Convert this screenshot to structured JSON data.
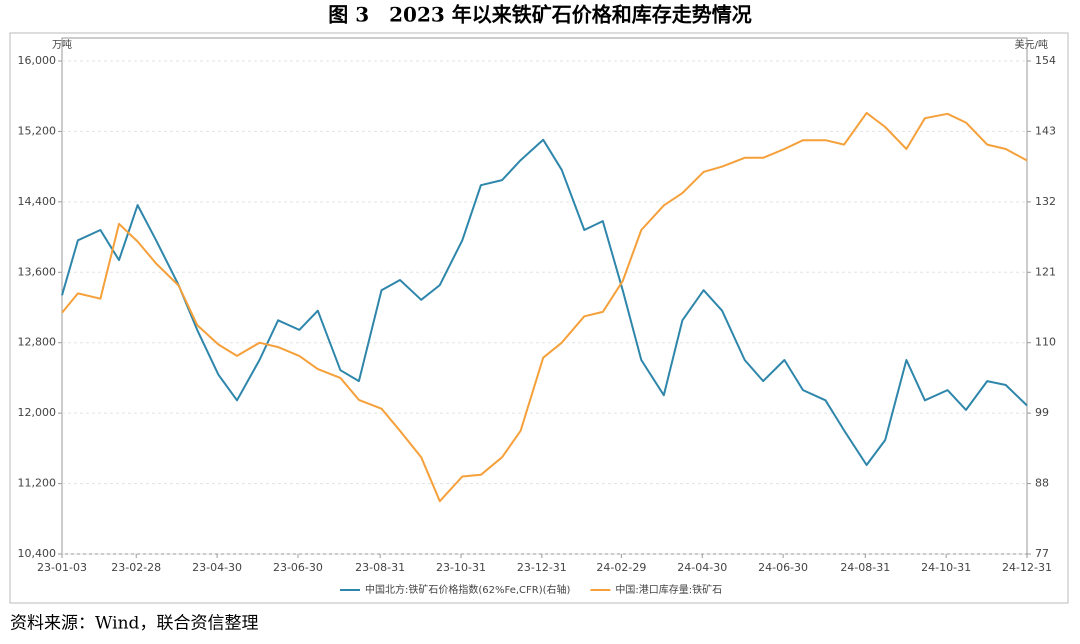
{
  "chart_data": {
    "type": "line",
    "title": "图 3　2023 年以来铁矿石价格和库存走势情况",
    "ylabel": "万吨",
    "y2label": "美元/吨",
    "source": "资料来源：Wind，联合资信整理",
    "x": [
      "23-01-03",
      "23-01-15",
      "23-02-01",
      "23-02-15",
      "23-03-01",
      "23-03-15",
      "23-04-01",
      "23-04-15",
      "23-05-01",
      "23-05-15",
      "23-06-01",
      "23-06-15",
      "23-07-01",
      "23-07-15",
      "23-08-01",
      "23-08-15",
      "23-09-01",
      "23-09-15",
      "23-10-01",
      "23-10-15",
      "23-11-01",
      "23-11-15",
      "23-12-01",
      "23-12-15",
      "24-01-01",
      "24-01-15",
      "24-02-01",
      "24-02-15",
      "24-03-01",
      "24-03-15",
      "24-04-01",
      "24-04-15",
      "24-05-01",
      "24-05-15",
      "24-06-01",
      "24-06-15",
      "24-07-01",
      "24-07-15",
      "24-08-01",
      "24-08-15",
      "24-09-01",
      "24-09-15",
      "24-10-01",
      "24-10-15",
      "24-11-01",
      "24-11-15",
      "24-12-01",
      "24-12-15",
      "24-12-31"
    ],
    "xlim": [
      "23-01-03",
      "24-12-31"
    ],
    "xticks": [
      "23-01-03",
      "23-02-28",
      "23-04-30",
      "23-06-30",
      "23-08-31",
      "23-10-31",
      "23-12-31",
      "24-02-29",
      "24-04-30",
      "24-06-30",
      "24-08-31",
      "24-10-31",
      "24-12-31"
    ],
    "ylim": [
      10400,
      16000
    ],
    "yticks": [
      {
        "value": 10400,
        "label": "10,400"
      },
      {
        "value": 11200,
        "label": "11,200"
      },
      {
        "value": 12000,
        "label": "12,000"
      },
      {
        "value": 12800,
        "label": "12,800"
      },
      {
        "value": 13600,
        "label": "13,600"
      },
      {
        "value": 14400,
        "label": "14,400"
      },
      {
        "value": 15200,
        "label": "15,200"
      },
      {
        "value": 16000,
        "label": "16,000"
      }
    ],
    "y2lim": [
      77,
      154
    ],
    "y2ticks": [
      77,
      88,
      99,
      110,
      121,
      132,
      143,
      154
    ],
    "grid": true,
    "series": [
      {
        "name": "中国北方:铁矿石价格指数(62%Fe,CFR)(右轴)",
        "color": "#2e86ab",
        "axis": "y2",
        "values": [
          117.4,
          126,
          127.6,
          122.9,
          131.5,
          126,
          119,
          112,
          105,
          101,
          107.3,
          113.5,
          112,
          115,
          105.7,
          104,
          118.2,
          119.8,
          116.7,
          119,
          126,
          134.6,
          135.4,
          138.5,
          141.7,
          137,
          127.6,
          129,
          118.2,
          107.3,
          101.8,
          113.5,
          118.2,
          115,
          107.3,
          104,
          107.3,
          102.6,
          101,
          96.3,
          90.9,
          94.8,
          107.3,
          101,
          102.6,
          99.5,
          104,
          103.4,
          100.2
        ]
      },
      {
        "name": "中国:港口库存量:铁矿石",
        "color": "#f5a03a",
        "axis": "y",
        "values": [
          13140,
          13360,
          13300,
          14150,
          13950,
          13700,
          13450,
          13000,
          12780,
          12650,
          12800,
          12750,
          12650,
          12500,
          12400,
          12150,
          12050,
          11800,
          11500,
          11000,
          11280,
          11300,
          11500,
          11800,
          12630,
          12800,
          13100,
          13150,
          13500,
          14080,
          14360,
          14500,
          14740,
          14800,
          14900,
          14900,
          15000,
          15100,
          15100,
          15050,
          15410,
          15250,
          15000,
          15350,
          15400,
          15300,
          15050,
          15000,
          14870
        ]
      }
    ]
  }
}
